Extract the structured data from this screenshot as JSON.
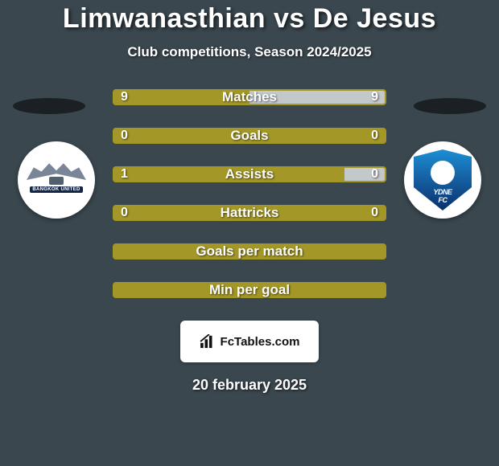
{
  "background_color": "#3a474f",
  "title_color": "#ffffff",
  "title": "Limwanasthian vs De Jesus",
  "subtitle": "Club competitions, Season 2024/2025",
  "bar_fill_color": "#a39827",
  "bar_empty_color": "#c3c8cb",
  "bar_border_color": "#a39827",
  "stat_rows": [
    {
      "label": "Matches",
      "left": "9",
      "right": "9",
      "left_pct": 50,
      "right_pct": 50
    },
    {
      "label": "Goals",
      "left": "0",
      "right": "0",
      "left_pct": 100,
      "right_pct": 0
    },
    {
      "label": "Assists",
      "left": "1",
      "right": "0",
      "left_pct": 85,
      "right_pct": 15
    },
    {
      "label": "Hattricks",
      "left": "0",
      "right": "0",
      "left_pct": 100,
      "right_pct": 0
    },
    {
      "label": "Goals per match",
      "left": "",
      "right": "",
      "left_pct": 100,
      "right_pct": 0
    },
    {
      "label": "Min per goal",
      "left": "",
      "right": "",
      "left_pct": 100,
      "right_pct": 0
    }
  ],
  "club_left": {
    "name": "BANGKOK UNITED"
  },
  "club_right": {
    "name": "YDNE",
    "sub": "FC"
  },
  "brand": "FcTables.com",
  "date": "20 february 2025"
}
